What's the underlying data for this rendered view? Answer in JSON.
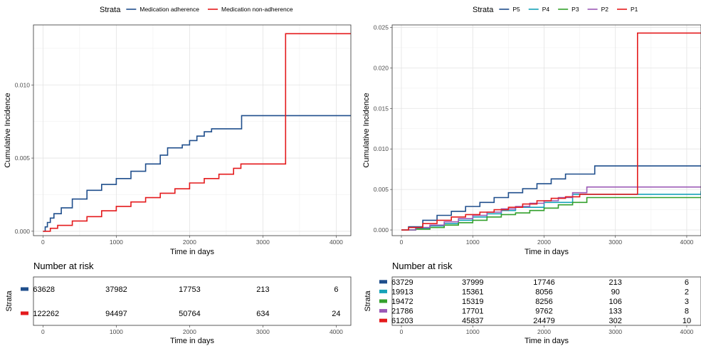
{
  "chart_data": [
    {
      "type": "line",
      "step": true,
      "legend_title": "Strata",
      "legend_placement": "top",
      "xlabel": "Time in days",
      "ylabel": "Cumulative Incidence",
      "xlim": [
        -130,
        4200
      ],
      "ylim": [
        -0.0003,
        0.0141
      ],
      "xticks": [
        0,
        1000,
        2000,
        3000,
        4000
      ],
      "yticks": [
        0,
        0.005,
        0.01
      ],
      "ytick_labels": [
        "0.000",
        "0.005",
        "0.010"
      ],
      "grid": true,
      "series": [
        {
          "name": "Medication adherence",
          "color": "#1f4e8c",
          "x": [
            0,
            30,
            60,
            100,
            150,
            250,
            400,
            600,
            800,
            1000,
            1200,
            1400,
            1600,
            1700,
            1900,
            2000,
            2100,
            2200,
            2300,
            2700,
            2710,
            4200
          ],
          "y": [
            0,
            0.0003,
            0.0006,
            0.0009,
            0.0012,
            0.0016,
            0.0022,
            0.0028,
            0.0032,
            0.0036,
            0.0041,
            0.0046,
            0.0052,
            0.0057,
            0.0059,
            0.0062,
            0.0065,
            0.0068,
            0.007,
            0.007,
            0.0079,
            0.0079
          ]
        },
        {
          "name": "Medication non-adherence",
          "color": "#e41a1c",
          "x": [
            0,
            100,
            200,
            400,
            600,
            800,
            1000,
            1200,
            1400,
            1600,
            1800,
            2000,
            2200,
            2400,
            2600,
            2700,
            3300,
            3310,
            4200
          ],
          "y": [
            0,
            0.0002,
            0.0004,
            0.0007,
            0.001,
            0.0014,
            0.0017,
            0.002,
            0.0023,
            0.0026,
            0.0029,
            0.0033,
            0.0036,
            0.0039,
            0.0043,
            0.0046,
            0.0046,
            0.0135,
            0.0135
          ]
        }
      ],
      "risk_table": {
        "title": "Number at risk",
        "ylabel": "Strata",
        "xlabel": "Time in days",
        "times": [
          0,
          1000,
          2000,
          3000,
          4000
        ],
        "rows": [
          {
            "color": "#1f4e8c",
            "counts": [
              "63628",
              "37982",
              "17753",
              "213",
              "6"
            ]
          },
          {
            "color": "#e41a1c",
            "counts": [
              "122262",
              "94497",
              "50764",
              "634",
              "24"
            ]
          }
        ]
      }
    },
    {
      "type": "line",
      "step": true,
      "legend_title": "Strata",
      "legend_placement": "top",
      "xlabel": "Time in days",
      "ylabel": "Cumulative Incidence",
      "xlim": [
        -130,
        4200
      ],
      "ylim": [
        -0.0007,
        0.0253
      ],
      "xticks": [
        0,
        1000,
        2000,
        3000,
        4000
      ],
      "yticks": [
        0,
        0.005,
        0.01,
        0.015,
        0.02,
        0.025
      ],
      "ytick_labels": [
        "0.000",
        "0.005",
        "0.010",
        "0.015",
        "0.020",
        "0.025"
      ],
      "grid": true,
      "series": [
        {
          "name": "P5",
          "color": "#1f4e8c",
          "x": [
            0,
            100,
            300,
            500,
            700,
            900,
            1100,
            1300,
            1500,
            1700,
            1900,
            2100,
            2300,
            2700,
            2710,
            4200
          ],
          "y": [
            0,
            0.0004,
            0.0012,
            0.0018,
            0.0023,
            0.0029,
            0.0034,
            0.004,
            0.0046,
            0.0051,
            0.0057,
            0.0063,
            0.0069,
            0.0069,
            0.0079,
            0.0079
          ]
        },
        {
          "name": "P4",
          "color": "#17a2b8",
          "x": [
            0,
            200,
            400,
            600,
            800,
            1000,
            1200,
            1400,
            1600,
            2000,
            2400,
            4200
          ],
          "y": [
            0,
            0.0002,
            0.0005,
            0.0008,
            0.0012,
            0.0016,
            0.002,
            0.0024,
            0.0028,
            0.0034,
            0.0044,
            0.0048
          ]
        },
        {
          "name": "P3",
          "color": "#33a02c",
          "x": [
            0,
            200,
            400,
            600,
            800,
            1000,
            1200,
            1400,
            1600,
            1800,
            2000,
            2200,
            2400,
            2600,
            4200
          ],
          "y": [
            0,
            0.0001,
            0.0003,
            0.0006,
            0.0009,
            0.0012,
            0.0016,
            0.0019,
            0.0021,
            0.0024,
            0.0027,
            0.0031,
            0.0034,
            0.004,
            0.004
          ]
        },
        {
          "name": "P2",
          "color": "#9b59b6",
          "x": [
            0,
            200,
            400,
            600,
            800,
            1000,
            1200,
            1400,
            1600,
            1800,
            2000,
            2200,
            2400,
            2600,
            4200
          ],
          "y": [
            0,
            0.0003,
            0.0006,
            0.001,
            0.0014,
            0.0018,
            0.0022,
            0.0026,
            0.0029,
            0.0033,
            0.0036,
            0.004,
            0.0046,
            0.0053,
            0.0053
          ]
        },
        {
          "name": "P1",
          "color": "#e41a1c",
          "x": [
            0,
            100,
            300,
            500,
            700,
            900,
            1100,
            1300,
            1500,
            1700,
            1900,
            2100,
            2300,
            2500,
            3300,
            3310,
            4200
          ],
          "y": [
            0,
            0.0003,
            0.0008,
            0.0012,
            0.0016,
            0.0019,
            0.0022,
            0.0025,
            0.0028,
            0.0032,
            0.0036,
            0.0039,
            0.0041,
            0.0044,
            0.0044,
            0.0243,
            0.0243
          ]
        }
      ],
      "risk_table": {
        "title": "Number at risk",
        "ylabel": "Strata",
        "xlabel": "Time in days",
        "times": [
          0,
          1000,
          2000,
          3000,
          4000
        ],
        "rows": [
          {
            "color": "#1f4e8c",
            "counts": [
              "63729",
              "37999",
              "17746",
              "213",
              "6"
            ]
          },
          {
            "color": "#17a2b8",
            "counts": [
              "19913",
              "15361",
              "8056",
              "90",
              "2"
            ]
          },
          {
            "color": "#33a02c",
            "counts": [
              "19472",
              "15319",
              "8256",
              "106",
              "3"
            ]
          },
          {
            "color": "#9b59b6",
            "counts": [
              "21786",
              "17701",
              "9762",
              "133",
              "8"
            ]
          },
          {
            "color": "#e41a1c",
            "counts": [
              "61203",
              "45837",
              "24479",
              "302",
              "10"
            ]
          }
        ]
      }
    }
  ]
}
